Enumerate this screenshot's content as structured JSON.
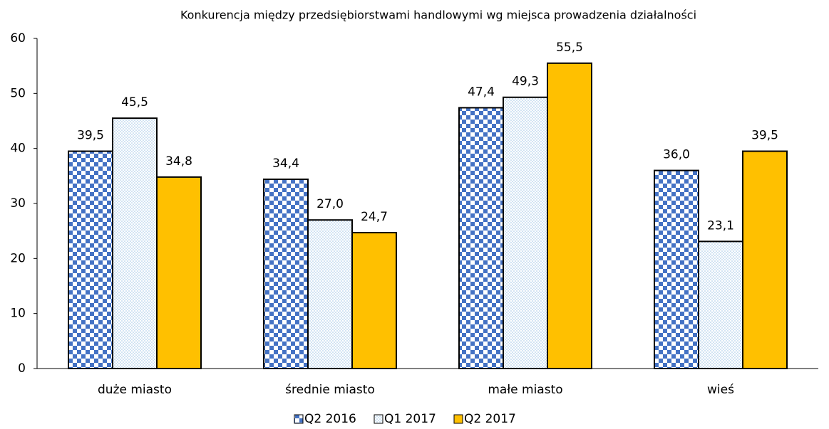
{
  "chart_data": {
    "type": "bar",
    "title": "Konkurencja między przedsiębiorstwami handlowymi wg miejsca prowadzenia działalności",
    "categories": [
      "duże miasto",
      "średnie miasto",
      "małe miasto",
      "wieś"
    ],
    "series": [
      {
        "name": "Q2 2016",
        "color": "#4472c4",
        "pattern": "checker",
        "values": [
          39.5,
          34.4,
          47.4,
          36.0
        ],
        "value_labels": [
          "39,5",
          "34,4",
          "47,4",
          "36,0"
        ]
      },
      {
        "name": "Q1 2017",
        "color": "#9dc3e6",
        "pattern": "dots",
        "values": [
          45.5,
          27.0,
          49.3,
          23.1
        ],
        "value_labels": [
          "45,5",
          "27,0",
          "49,3",
          "23,1"
        ]
      },
      {
        "name": "Q2 2017",
        "color": "#ffc000",
        "pattern": "solid",
        "values": [
          34.8,
          24.7,
          55.5,
          39.5
        ],
        "value_labels": [
          "34,8",
          "24,7",
          "55,5",
          "39,5"
        ]
      }
    ],
    "ylim": [
      0,
      60
    ],
    "yticks": [
      0,
      10,
      20,
      30,
      40,
      50,
      60
    ],
    "grid": false,
    "legend": "bottom"
  }
}
